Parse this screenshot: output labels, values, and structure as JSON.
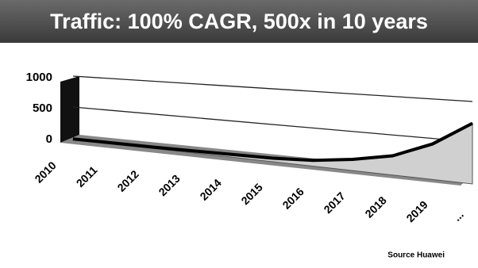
{
  "chart_data": {
    "type": "area",
    "title": "Traffic: 100% CAGR, 500x in 10 years",
    "categories": [
      "2010",
      "2011",
      "2012",
      "2013",
      "2014",
      "2015",
      "2016",
      "2017",
      "2018",
      "2019",
      "..."
    ],
    "values": [
      10,
      15,
      20,
      30,
      40,
      50,
      80,
      150,
      250,
      450,
      750
    ],
    "color": "#d0d0d0",
    "ylim": [
      0,
      1000
    ],
    "yticks": [
      0,
      500,
      1000
    ],
    "grid": true,
    "source": "Source Huawei"
  }
}
